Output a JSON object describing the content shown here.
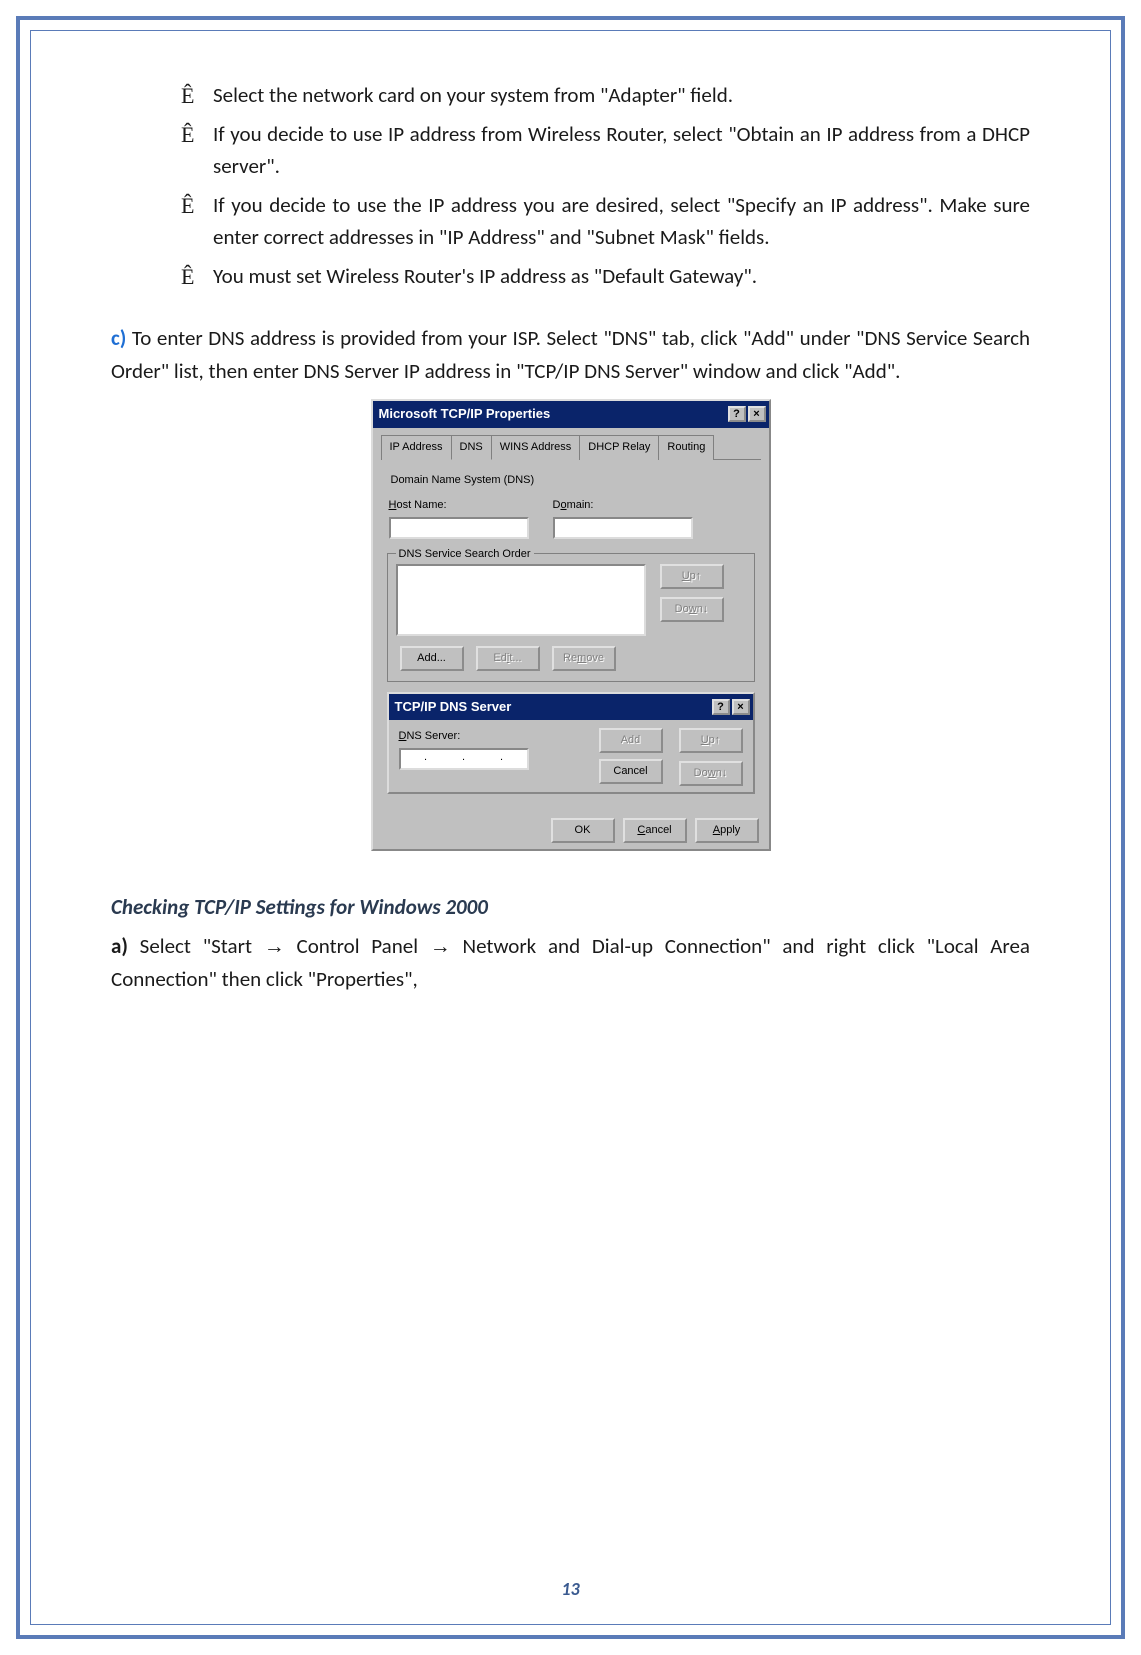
{
  "bullets": [
    "Select the network card on your system from \"Adapter\" field.",
    "If you decide to use IP address from Wireless Router, select \"Obtain an IP address from a DHCP server\".",
    "If you decide to use the IP address you are desired, select \"Specify an IP address\". Make sure enter correct addresses in \"IP Address\" and \"Subnet Mask\" fields.",
    "You must set Wireless Router's IP address as \"Default Gateway\"."
  ],
  "step_c": {
    "label": "c)",
    "text": " To enter DNS address is provided from your ISP. Select \"DNS\" tab, click \"Add\" under \"DNS Service Search Order\" list, then enter DNS Server IP address in \"TCP/IP DNS Server\" window and click \"Add\"."
  },
  "dialog": {
    "title": "Microsoft TCP/IP Properties",
    "help_glyph": "?",
    "close_glyph": "×",
    "tabs": [
      "IP Address",
      "DNS",
      "WINS Address",
      "DHCP Relay",
      "Routing"
    ],
    "active_tab": "DNS",
    "group_label": "Domain Name System (DNS)",
    "host_label_pre": "H",
    "host_label_rest": "ost Name:",
    "domain_label_pre": "D",
    "domain_label_rest": "omain:",
    "search_order_pre": "DNS ",
    "search_order_ul": "S",
    "search_order_rest": "ervice Search Order",
    "btn_up_pre": "U",
    "btn_up_rest": "p↑",
    "btn_down_pre": "Do",
    "btn_down_ul": "w",
    "btn_down_rest": "n↓",
    "btn_add": "Add...",
    "btn_edit_pre": "Ed",
    "btn_edit_ul": "i",
    "btn_edit_rest": "t...",
    "btn_remove_pre": "Re",
    "btn_remove_ul": "m",
    "btn_remove_rest": "ove",
    "sub_title": "TCP/IP DNS Server",
    "dns_server_pre": "D",
    "dns_server_rest": "NS Server:",
    "sub_add": "Add",
    "sub_cancel": "Cancel",
    "ip_dots": [
      ".",
      ".",
      "."
    ],
    "ok": "OK",
    "cancel_pre": "C",
    "cancel_rest": "ancel",
    "apply_pre": "A",
    "apply_rest": "pply"
  },
  "heading": "Checking TCP/IP Settings for Windows 2000",
  "step_a": {
    "label": "a)",
    "pre": " Select \"Start ",
    "mid1": " Control Panel ",
    "mid2": " Network and Dial-up Connection\" and right click \"Local Area Connection\" then click \"Properties\","
  },
  "arrow": "→",
  "page_number": "13",
  "colors": {
    "frame": "#5a7bb8",
    "step_label": "#1f6fd4",
    "titlebar": "#0a246a",
    "win_bg": "#c0c0c0",
    "disabled_text": "#808080"
  }
}
